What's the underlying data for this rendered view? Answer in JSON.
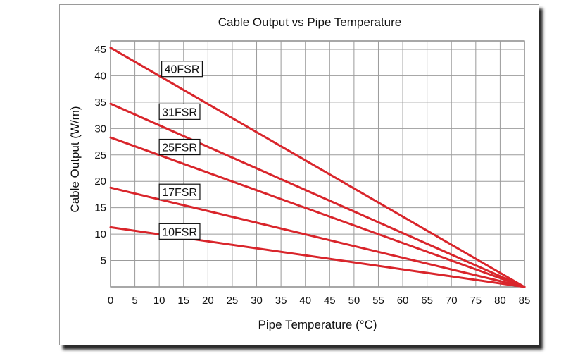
{
  "chart_data": {
    "type": "line",
    "title": "Cable Output vs Pipe Temperature",
    "xlabel": "Pipe Temperature (°C)",
    "ylabel": "Cable Output (W/m)",
    "xlim": [
      0,
      85
    ],
    "ylim": [
      0,
      45
    ],
    "x_ticks": [
      "0",
      "5",
      "10",
      "15",
      "20",
      "25",
      "30",
      "35",
      "40",
      "45",
      "50",
      "55",
      "60",
      "65",
      "70",
      "75",
      "80",
      "85"
    ],
    "y_ticks": [
      "5",
      "10",
      "15",
      "20",
      "25",
      "30",
      "35",
      "40",
      "45"
    ],
    "grid": true,
    "line_color": "#d9252b",
    "series": [
      {
        "name": "40FSR",
        "x": [
          0,
          85
        ],
        "y": [
          45.3,
          0
        ],
        "label_at": {
          "x": 10.5,
          "y": 41.3
        }
      },
      {
        "name": "31FSR",
        "x": [
          0,
          85
        ],
        "y": [
          34.7,
          0
        ],
        "label_at": {
          "x": 10,
          "y": 33.2
        }
      },
      {
        "name": "25FSR",
        "x": [
          0,
          85
        ],
        "y": [
          28.3,
          0
        ],
        "label_at": {
          "x": 10,
          "y": 26.5
        }
      },
      {
        "name": "17FSR",
        "x": [
          0,
          85
        ],
        "y": [
          18.8,
          0
        ],
        "label_at": {
          "x": 10,
          "y": 18.0
        }
      },
      {
        "name": "10FSR",
        "x": [
          0,
          85
        ],
        "y": [
          11.3,
          0
        ],
        "label_at": {
          "x": 10,
          "y": 10.5
        }
      }
    ]
  }
}
